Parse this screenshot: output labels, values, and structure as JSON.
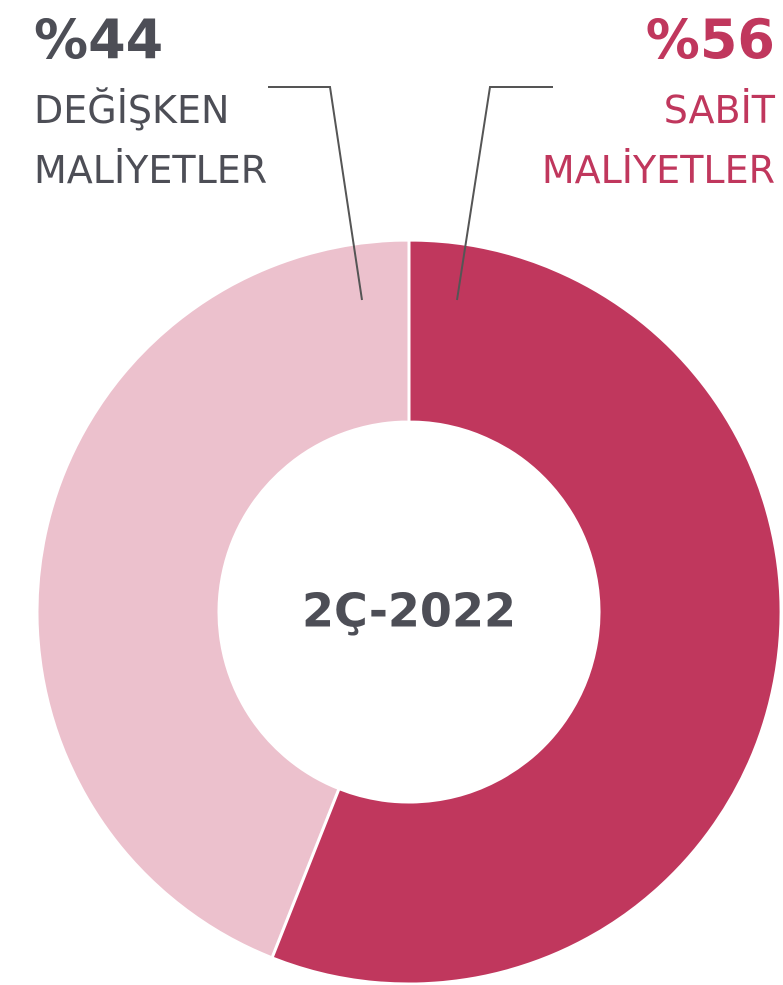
{
  "chart_data": {
    "type": "donut",
    "categories": [
      "DEĞİŞKEN MALİYETLER",
      "SABİT MALİYETLER"
    ],
    "values": [
      44,
      56
    ],
    "value_labels": [
      "%44",
      "%56"
    ],
    "colors": [
      "#ecc1cd",
      "#c0375d"
    ],
    "direction": "counterclockwise",
    "center_label": "2Ç-2022"
  }
}
